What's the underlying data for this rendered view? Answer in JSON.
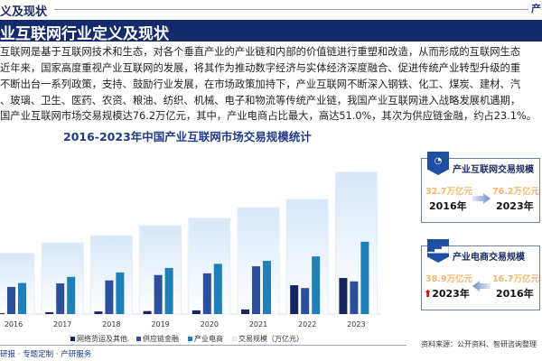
{
  "header": {
    "section": "义及现状",
    "top_right": "产",
    "band_title": "业互联网行业定义及现状"
  },
  "paragraph": [
    "互联网是基于互联网技术和生态，对各个垂直产业的产业链和内部的价值链进行重塑和改造，从而形成的互联网生态",
    "近年来，国家高度重视产业互联网的发展，将其作为推动数字经济与实体经济深度融合、促进传统产业转型升级的重",
    "不断出台一系列政策，支持、鼓励行业发展，在市场政策加持下，产业互联网不断深入钢铁、化工、煤炭、建材、汽",
    "、玻璃、卫生、医药、农资、粮油、纺织、机械、电子和物流等传统产业链，我国产业互联网进入战略发展机遇期，",
    "国产业互联网市场交易规模达76.2万亿元，其中，产业电商占比最大，高达51.0%，其次为供应链金融，约占23.1%。"
  ],
  "chart_data": {
    "type": "bar",
    "title": "2016-2023年中国产业互联网市场交易规模统计",
    "categories": [
      "2016",
      "2017",
      "2018",
      "2019",
      "2020",
      "2021",
      "2022",
      "2023"
    ],
    "series": [
      {
        "name": "网络货运及其他",
        "color": "#13245e",
        "values": [
          0.5,
          1.0,
          1.4,
          1.6,
          2.0,
          2.5,
          15.5,
          19.4
        ]
      },
      {
        "name": "供应链金融",
        "color": "#2c4f9c",
        "values": [
          14.6,
          16.5,
          18.1,
          21.0,
          21.9,
          25.7,
          14.0,
          17.6
        ]
      },
      {
        "name": "产业电商",
        "color": "#1f7fb8",
        "values": [
          16.7,
          20.0,
          22.4,
          24.8,
          27.0,
          28.6,
          31.0,
          38.9
        ]
      },
      {
        "name": "交易规模（万亿元）",
        "color": "#dbe9f7",
        "values": [
          32.7,
          38.3,
          42.2,
          47.6,
          51.5,
          57.3,
          61.7,
          76.2
        ]
      }
    ],
    "ylim": [
      0,
      80
    ],
    "grid": false,
    "legend": "bottom"
  },
  "cards": [
    {
      "title": "产业互联网交易规模",
      "icon": "pie-chart-icon",
      "left_value": "32.7万亿元",
      "left_year": "2016年",
      "right_value": "76.2万亿元",
      "right_year": "2023年"
    },
    {
      "title": "产业电商交易规模",
      "icon": "bar-chart-icon",
      "left_value": "38.9万亿元",
      "left_year": "2023年",
      "right_value": "16.7万亿元",
      "right_year": "2016年"
    }
  ],
  "footer": {
    "left": "研报 · 专题定制 · 产研服务",
    "source": "资料来源：公开资料、智研咨询整理"
  }
}
